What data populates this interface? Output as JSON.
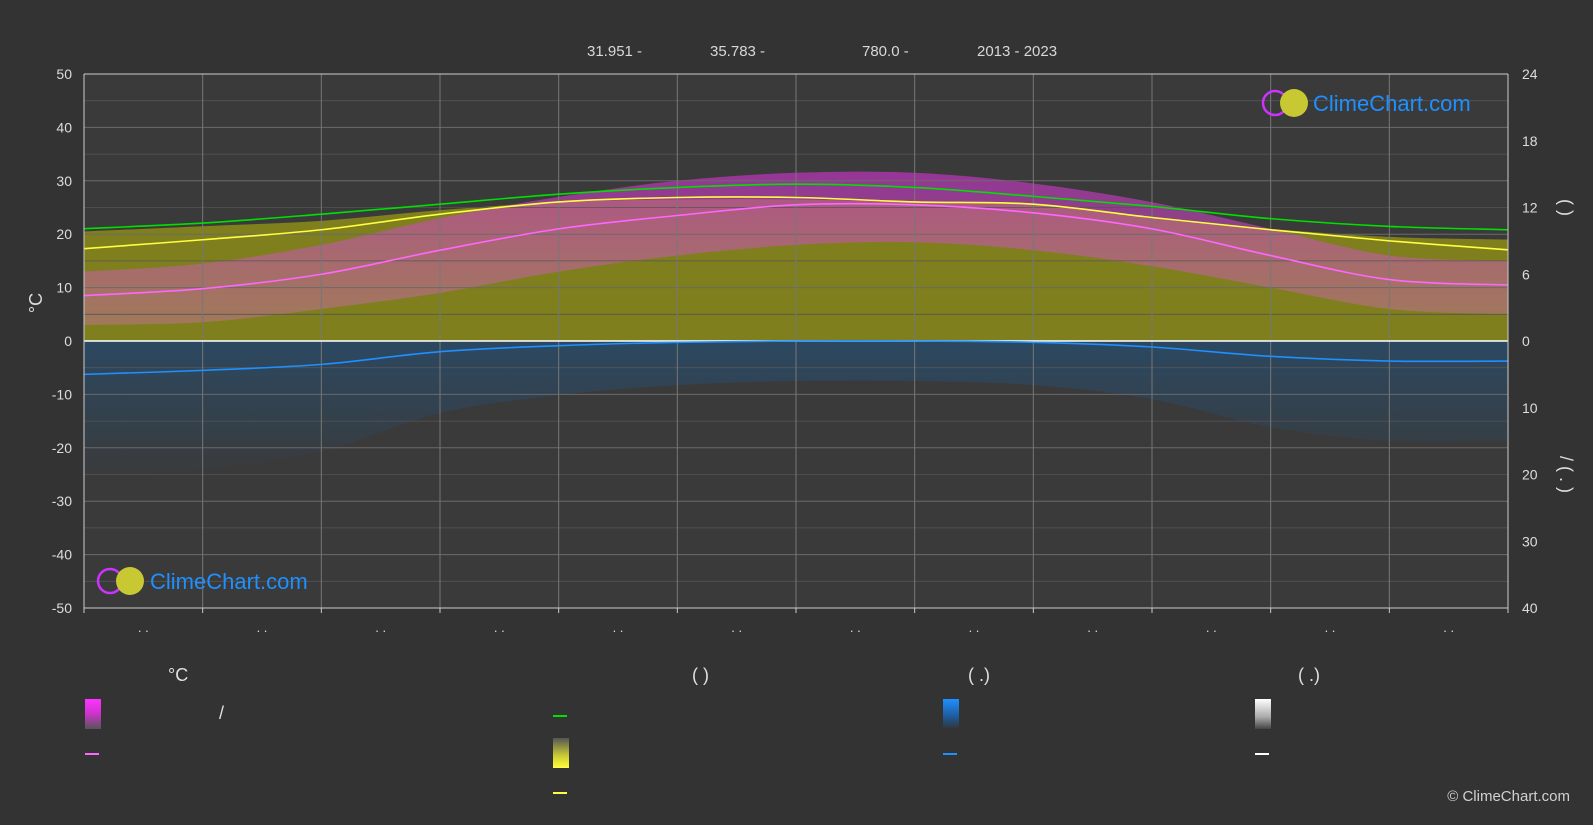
{
  "header": {
    "lat": "31.951 -",
    "lon": "35.783 -",
    "elev": "780.0 -",
    "years": "2013 - 2023"
  },
  "logo_text": "ClimeChart.com",
  "copyright": "© ClimeChart.com",
  "colors": {
    "background": "#333333",
    "daylight": "#00e000",
    "sunshine": "#ffff40",
    "avg_temp": "#ff66ff",
    "precip": "#1e90ff",
    "temp_range": "#cc33cc",
    "sunshine_fill": "#8c8c1a",
    "logo_text": "#1e90ff"
  },
  "legend": {
    "col1_head": "°C",
    "col2_head": "(          )",
    "col3_head": "(   .)",
    "col4_head": "(   .)",
    "col1_slash": "/"
  },
  "chart_data": {
    "type": "line",
    "x_tick_labels": [
      ". .",
      ". .",
      ". .",
      ". .",
      ". .",
      ". .",
      ". .",
      ". .",
      ". .",
      ". .",
      ". .",
      ". ."
    ],
    "y_left": {
      "label": "°C",
      "ticks": [
        50,
        40,
        30,
        20,
        10,
        0,
        -10,
        -20,
        -30,
        -40,
        -50
      ],
      "range": [
        -50,
        50
      ]
    },
    "y_right_top": {
      "ticks": [
        24,
        18,
        12,
        6,
        0
      ],
      "range": [
        0,
        24
      ],
      "label": "(      )"
    },
    "y_right_bottom": {
      "ticks": [
        0,
        10,
        20,
        30,
        40
      ],
      "range": [
        0,
        40
      ],
      "label": "/   (  .  )"
    },
    "grid": true,
    "series": [
      {
        "key": "daylight",
        "axis": "right_top",
        "values": [
          10.1,
          10.6,
          11.4,
          12.3,
          13.2,
          13.8,
          14.1,
          13.8,
          13.0,
          12.1,
          11.0,
          10.3,
          10.0
        ]
      },
      {
        "key": "sunshine",
        "axis": "right_top",
        "values": [
          8.3,
          9.1,
          10.0,
          11.4,
          12.5,
          12.9,
          12.9,
          12.5,
          12.3,
          11.1,
          10.0,
          9.0,
          8.2
        ]
      },
      {
        "key": "avg_temp",
        "axis": "left",
        "values": [
          8.5,
          9.8,
          12.5,
          17.0,
          21.0,
          23.5,
          25.5,
          25.5,
          24.0,
          21.0,
          16.0,
          11.5,
          10.5
        ]
      },
      {
        "key": "precip",
        "axis": "right_bottom",
        "values": [
          5.0,
          4.4,
          3.5,
          1.6,
          0.7,
          0.2,
          0.0,
          0.0,
          0.2,
          0.9,
          2.3,
          3.0,
          3.0
        ]
      }
    ],
    "sunshine_band_top": [
      20.5,
      21.5,
      22.5,
      24.5,
      26,
      26.5,
      26.5,
      26,
      25.5,
      23,
      21,
      19.5,
      19
    ],
    "temp_band_low": [
      3,
      3.5,
      6,
      9,
      13,
      16,
      18,
      18.5,
      17,
      14,
      10,
      6,
      5
    ],
    "temp_band_high": [
      13,
      14.5,
      18,
      23,
      27,
      30,
      31.5,
      31.5,
      29.5,
      26,
      21,
      16,
      15
    ]
  }
}
